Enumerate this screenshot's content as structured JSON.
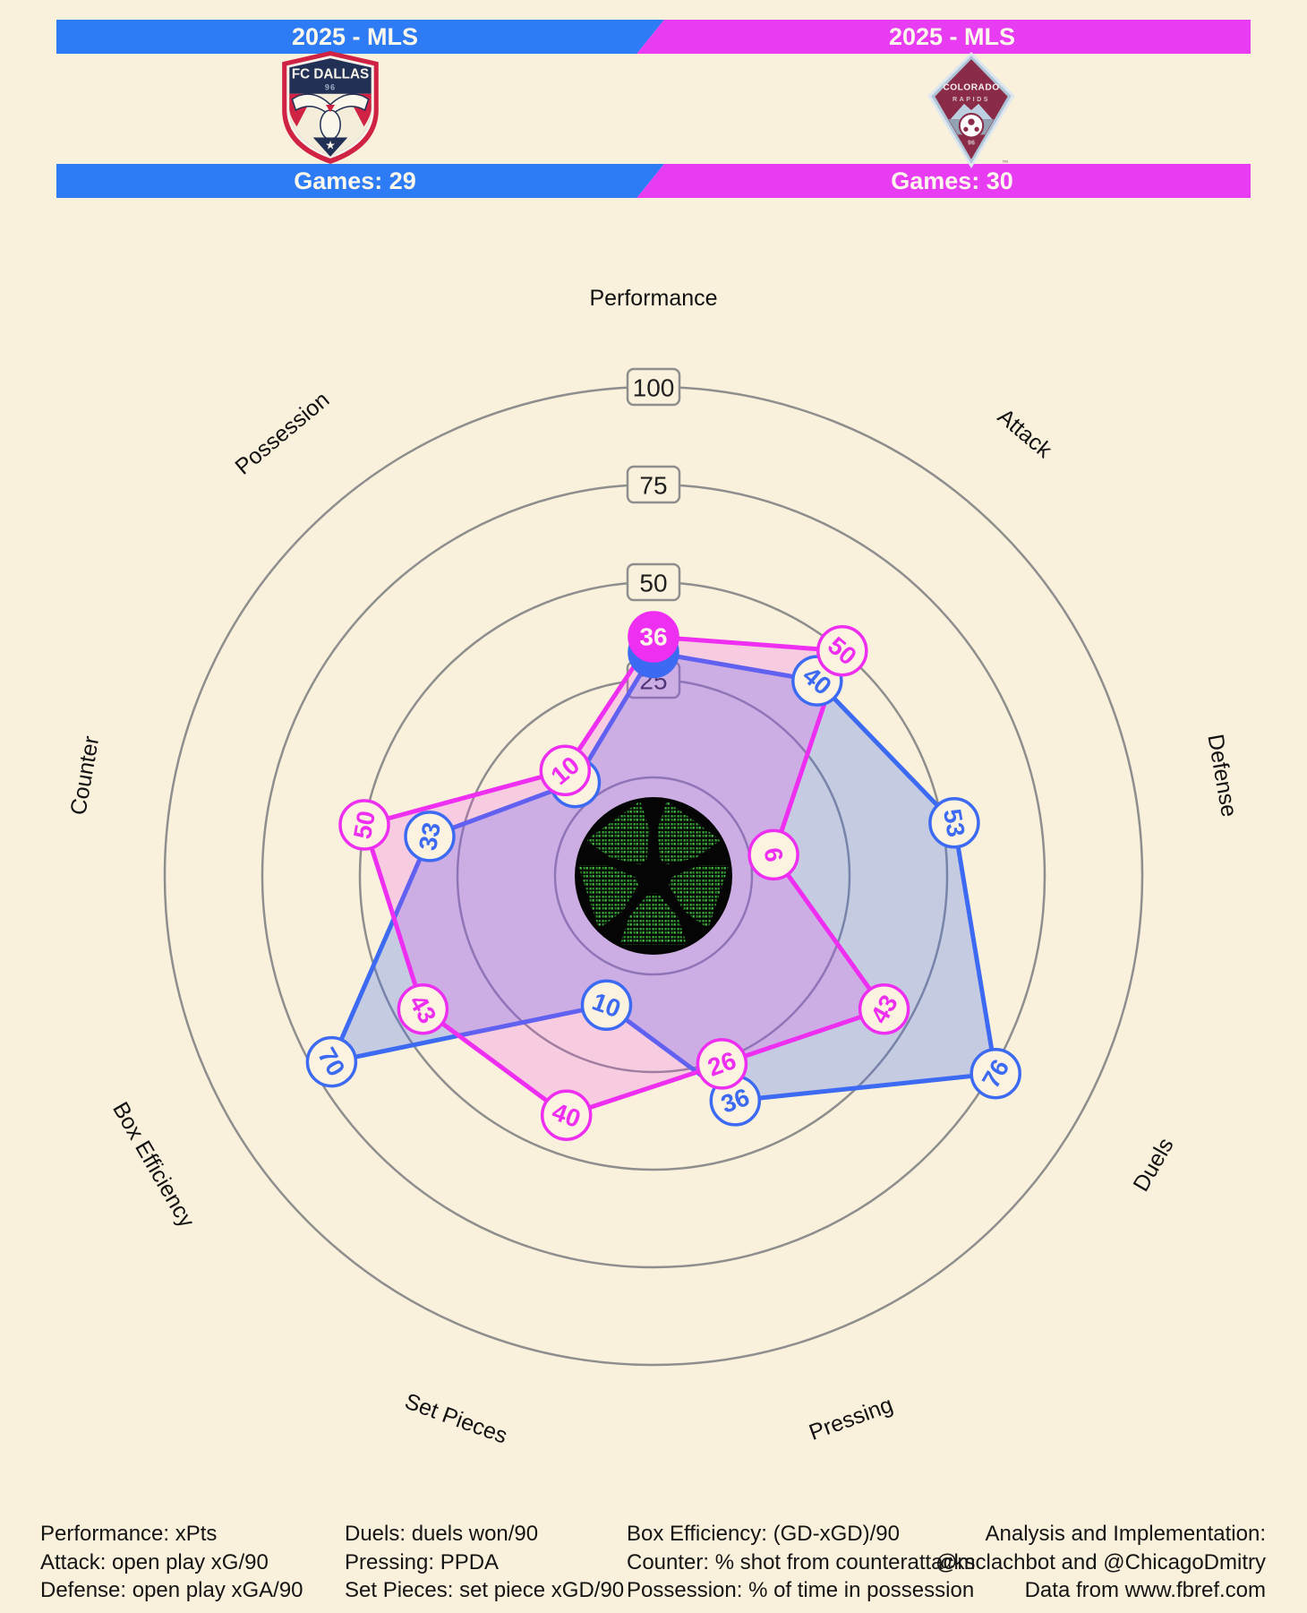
{
  "header": {
    "left": {
      "season": "2025 - MLS",
      "games": "Games: 29",
      "team": "FC Dallas",
      "accent": "#2D7BF5",
      "badge": {
        "line1": "FC DALLAS",
        "line2": "96"
      }
    },
    "right": {
      "season": "2025 - MLS",
      "games": "Games: 30",
      "team": "Colorado Rapids",
      "accent": "#E83CF2",
      "badge": {
        "line1": "COLORADO",
        "line2": "RAPIDS",
        "year": "96",
        "tm": "™"
      }
    }
  },
  "chart_data": {
    "type": "radar",
    "axes": [
      "Performance",
      "Attack",
      "Defense",
      "Duels",
      "Pressing",
      "Set Pieces",
      "Box Efficiency",
      "Counter",
      "Possession"
    ],
    "ring_ticks": [
      25,
      50,
      75,
      100
    ],
    "scale": {
      "min": 0,
      "max": 100
    },
    "grid_color": "#8E8E8E",
    "series": [
      {
        "name": "FC Dallas",
        "color": "#3D6AF2",
        "fill": "rgba(62,104,240,0.28)",
        "values": [
          32,
          40,
          53,
          76,
          36,
          10,
          70,
          33,
          6
        ],
        "filled_label_axes": [
          0
        ],
        "hidden_label_axes": [
          0,
          8
        ]
      },
      {
        "name": "Colorado Rapids",
        "color": "#EE2EF0",
        "fill": "rgba(238,60,238,0.20)",
        "values": [
          36,
          50,
          6,
          43,
          26,
          40,
          43,
          50,
          10
        ],
        "filled_label_axes": [
          0
        ],
        "hidden_label_axes": []
      }
    ]
  },
  "footer": {
    "col1": [
      "Performance: xPts",
      "Attack: open play xG/90",
      "Defense: open play xGA/90"
    ],
    "col2": [
      "Duels: duels won/90",
      "Pressing: PPDA",
      "Set Pieces: set piece xGD/90"
    ],
    "col3": [
      "Box Efficiency: (GD-xGD)/90",
      "Counter: % shot from counterattacks",
      "Possession: % of time in possession"
    ],
    "col4": [
      "Analysis and Implementation:",
      "@mclachbot and @ChicagoDmitry",
      "Data from www.fbref.com"
    ]
  }
}
